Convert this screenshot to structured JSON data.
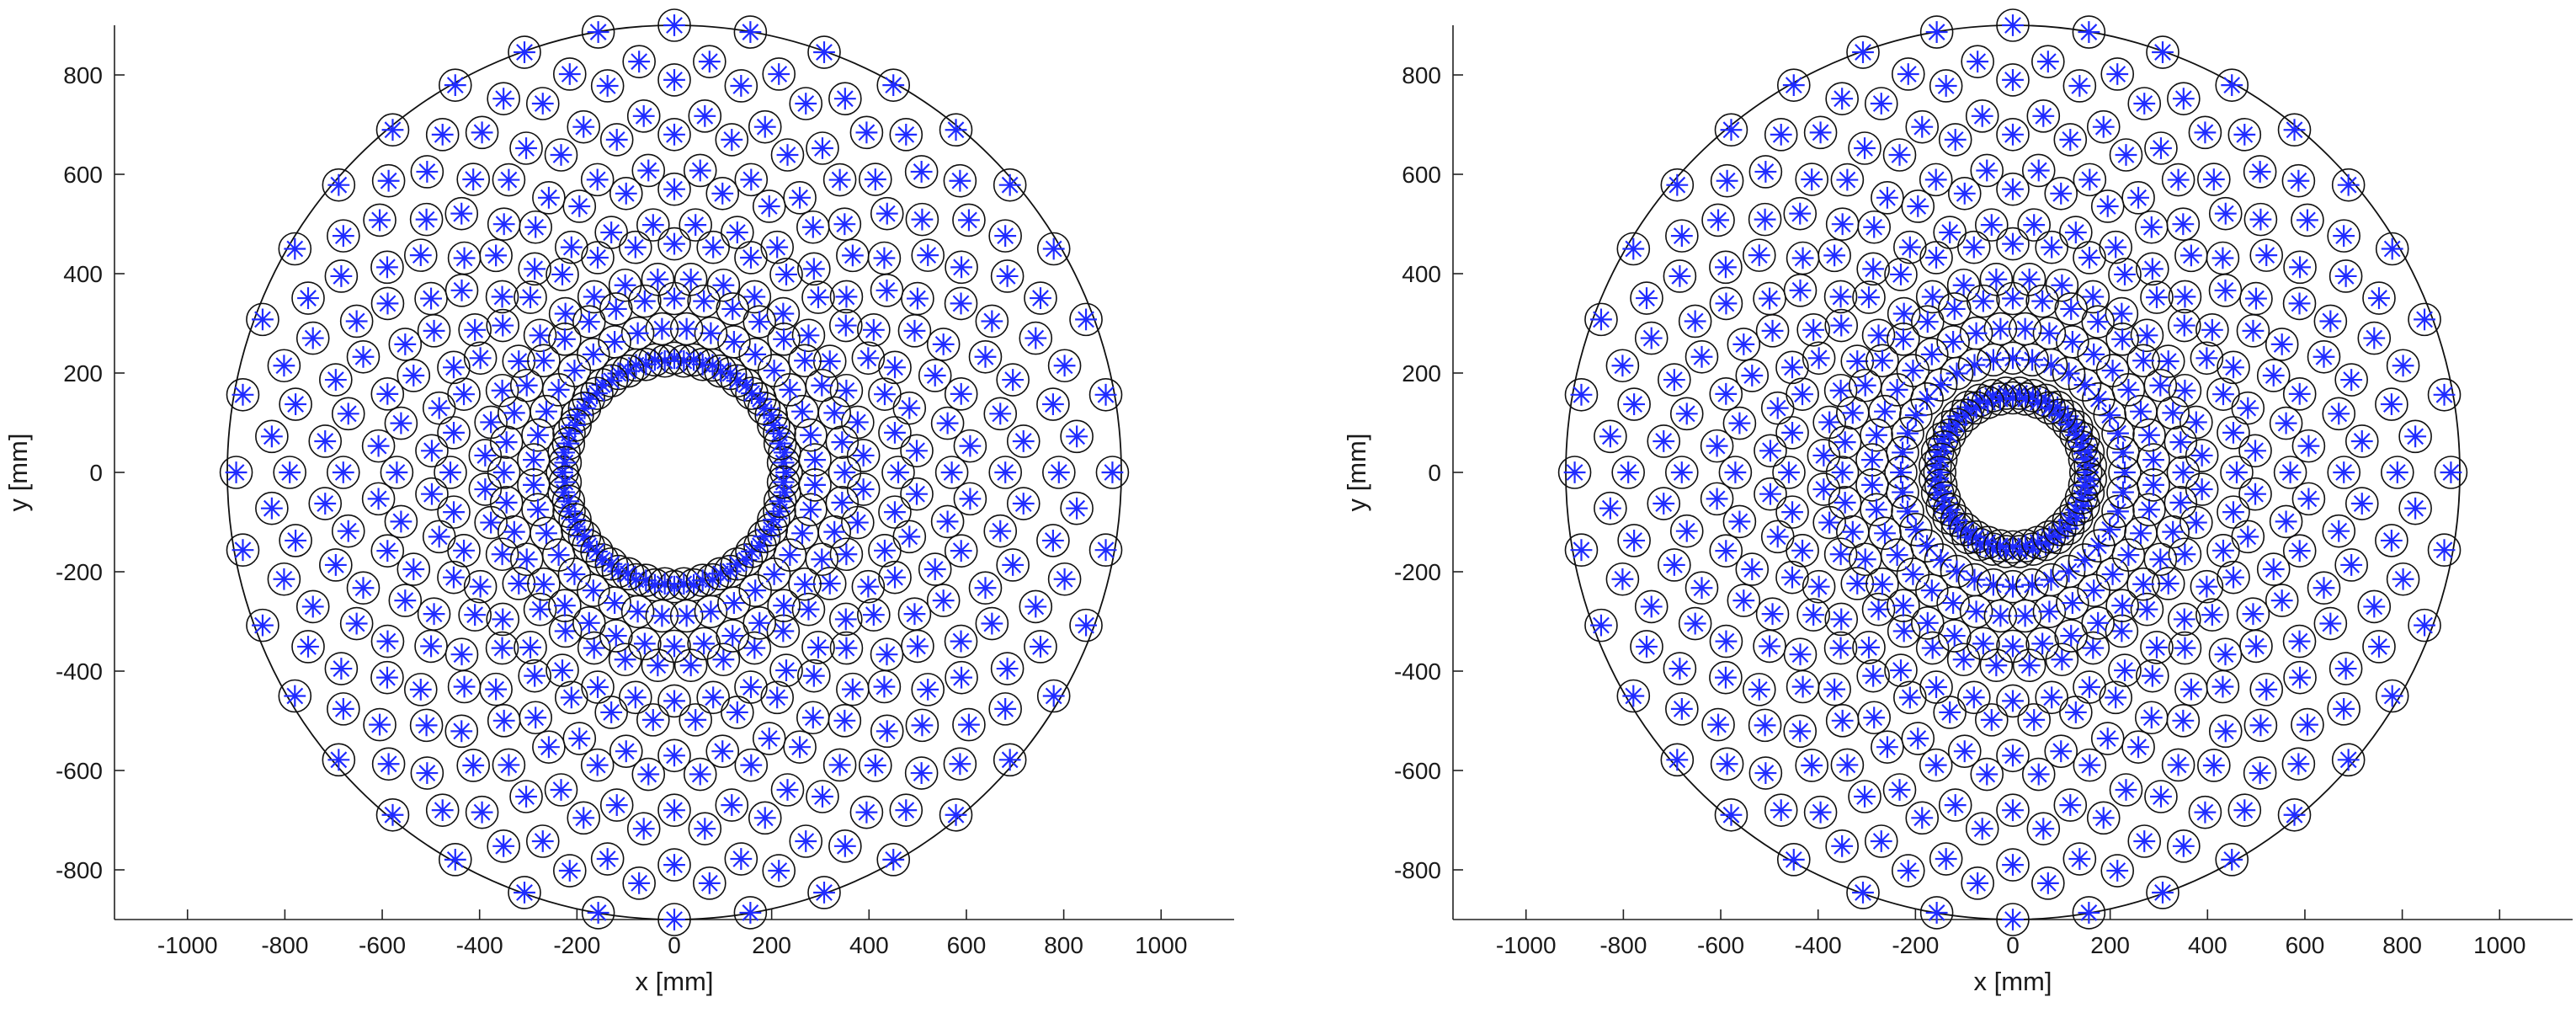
{
  "colors": {
    "axes": "#222222",
    "circle_outline": "#111111",
    "sensor_marker": "#1f2bff",
    "background": "#ffffff"
  },
  "chart_data": [
    {
      "type": "scatter",
      "title": "",
      "xlabel": "x [mm]",
      "ylabel": "y [mm]",
      "xlim": [
        -1150,
        1150
      ],
      "ylim": [
        -900,
        900
      ],
      "xticks": [
        -1000,
        -800,
        -600,
        -400,
        -200,
        0,
        200,
        400,
        600,
        800,
        1000
      ],
      "yticks": [
        -800,
        -600,
        -400,
        -200,
        0,
        200,
        400,
        600,
        800
      ],
      "xtick_labels": [
        "-1000",
        "-800",
        "-600",
        "-400",
        "-200",
        "0",
        "200",
        "400",
        "600",
        "800",
        "1000"
      ],
      "ytick_labels": [
        "-800",
        "-600",
        "-400",
        "-200",
        "0",
        "200",
        "400",
        "600",
        "800"
      ],
      "grid": false,
      "legend": "none",
      "outer_circle_radius": 900,
      "marker_radius": 19,
      "series": [
        {
          "radius": 900,
          "count": 36,
          "offset_deg": 0
        },
        {
          "radius": 830,
          "count": 36,
          "offset_deg": 5
        },
        {
          "radius": 790,
          "count": 36,
          "offset_deg": 0
        },
        {
          "radius": 720,
          "count": 36,
          "offset_deg": 5
        },
        {
          "radius": 680,
          "count": 36,
          "offset_deg": 0
        },
        {
          "radius": 610,
          "count": 36,
          "offset_deg": 5
        },
        {
          "radius": 570,
          "count": 36,
          "offset_deg": 0
        },
        {
          "radius": 500,
          "count": 36,
          "offset_deg": 5
        },
        {
          "radius": 460,
          "count": 36,
          "offset_deg": 0
        },
        {
          "radius": 390,
          "count": 36,
          "offset_deg": 5
        },
        {
          "radius": 350,
          "count": 36,
          "offset_deg": 0
        },
        {
          "radius": 290,
          "count": 36,
          "offset_deg": 5
        },
        {
          "radius": 230,
          "count": 36,
          "offset_deg": 0
        },
        {
          "radius": 225,
          "count": 36,
          "offset_deg": 5
        }
      ]
    },
    {
      "type": "scatter",
      "title": "",
      "xlabel": "x [mm]",
      "ylabel": "y [mm]",
      "xlim": [
        -1150,
        1150
      ],
      "ylim": [
        -900,
        900
      ],
      "xticks": [
        -1000,
        -800,
        -600,
        -400,
        -200,
        0,
        200,
        400,
        600,
        800,
        1000
      ],
      "yticks": [
        -800,
        -600,
        -400,
        -200,
        0,
        200,
        400,
        600,
        800
      ],
      "xtick_labels": [
        "-1000",
        "-800",
        "-600",
        "-400",
        "-200",
        "0",
        "200",
        "400",
        "600",
        "800",
        "1000"
      ],
      "ytick_labels": [
        "-800",
        "-600",
        "-400",
        "-200",
        "0",
        "200",
        "400",
        "600",
        "800"
      ],
      "grid": false,
      "legend": "none",
      "outer_circle_radius": 900,
      "marker_radius": 19,
      "series": [
        {
          "radius": 900,
          "count": 36,
          "offset_deg": 0
        },
        {
          "radius": 830,
          "count": 36,
          "offset_deg": 5
        },
        {
          "radius": 790,
          "count": 36,
          "offset_deg": 0
        },
        {
          "radius": 720,
          "count": 36,
          "offset_deg": 5
        },
        {
          "radius": 680,
          "count": 36,
          "offset_deg": 0
        },
        {
          "radius": 610,
          "count": 36,
          "offset_deg": 5
        },
        {
          "radius": 570,
          "count": 36,
          "offset_deg": 0
        },
        {
          "radius": 500,
          "count": 36,
          "offset_deg": 5
        },
        {
          "radius": 460,
          "count": 36,
          "offset_deg": 0
        },
        {
          "radius": 390,
          "count": 36,
          "offset_deg": 5
        },
        {
          "radius": 350,
          "count": 36,
          "offset_deg": 0
        },
        {
          "radius": 290,
          "count": 36,
          "offset_deg": 5
        },
        {
          "radius": 230,
          "count": 36,
          "offset_deg": 0
        },
        {
          "radius": 160,
          "count": 36,
          "offset_deg": 5
        },
        {
          "radius": 150,
          "count": 36,
          "offset_deg": 0
        }
      ]
    }
  ]
}
